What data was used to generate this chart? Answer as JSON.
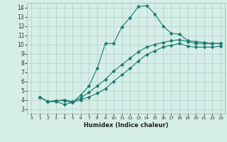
{
  "xlabel": "Humidex (Indice chaleur)",
  "bg_color": "#d6eee8",
  "grid_color": "#b0cfc8",
  "line_color": "#1a7a6e",
  "xlim": [
    -0.5,
    23.5
  ],
  "ylim": [
    2.5,
    14.5
  ],
  "xticks": [
    0,
    1,
    2,
    3,
    4,
    5,
    6,
    7,
    8,
    9,
    10,
    11,
    12,
    13,
    14,
    15,
    16,
    17,
    18,
    19,
    20,
    21,
    22,
    23
  ],
  "yticks": [
    3,
    4,
    5,
    6,
    7,
    8,
    9,
    10,
    11,
    12,
    13,
    14
  ],
  "line1_x": [
    1,
    2,
    3,
    4,
    5,
    6,
    7,
    8,
    9,
    10,
    11,
    12,
    13,
    14,
    15,
    16,
    17,
    18,
    19,
    20,
    21,
    22,
    23
  ],
  "line1_y": [
    4.3,
    3.8,
    3.8,
    3.5,
    3.7,
    4.5,
    5.5,
    7.4,
    10.1,
    10.1,
    11.9,
    12.9,
    14.1,
    14.2,
    13.3,
    12.0,
    11.2,
    11.1,
    10.4,
    10.3,
    10.2,
    10.1,
    10.1
  ],
  "line2_x": [
    1,
    2,
    3,
    4,
    5,
    6,
    7,
    8,
    9,
    10,
    11,
    12,
    13,
    14,
    15,
    16,
    17,
    18,
    19,
    20,
    21,
    22,
    23
  ],
  "line2_y": [
    4.3,
    3.8,
    3.9,
    4.0,
    3.8,
    4.2,
    4.8,
    5.5,
    6.2,
    7.1,
    7.8,
    8.5,
    9.2,
    9.7,
    10.0,
    10.2,
    10.4,
    10.5,
    10.3,
    10.1,
    10.1,
    10.1,
    10.1
  ],
  "line3_x": [
    1,
    2,
    3,
    4,
    5,
    6,
    7,
    8,
    9,
    10,
    11,
    12,
    13,
    14,
    15,
    16,
    17,
    18,
    19,
    20,
    21,
    22,
    23
  ],
  "line3_y": [
    4.3,
    3.8,
    3.9,
    3.9,
    3.7,
    4.0,
    4.3,
    4.7,
    5.2,
    6.0,
    6.7,
    7.4,
    8.2,
    8.9,
    9.3,
    9.7,
    9.9,
    10.1,
    9.8,
    9.7,
    9.7,
    9.7,
    9.8
  ]
}
